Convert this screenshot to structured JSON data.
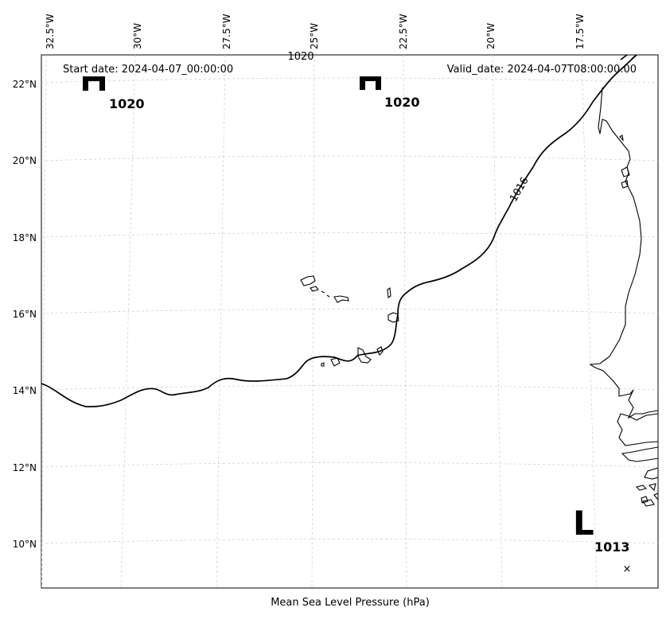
{
  "header": {
    "start_date": "Start date: 2024-04-07_00:00:00",
    "valid_date": "Valid_date: 2024-04-07T08:00:00.00"
  },
  "footer": {
    "caption": "Mean Sea Level Pressure (hPa)"
  },
  "longitude_ticks": [
    "32.5°W",
    "30°W",
    "27.5°W",
    "25°W",
    "22.5°W",
    "20°W",
    "17.5°W"
  ],
  "latitude_ticks": [
    "22°N",
    "20°N",
    "18°N",
    "16°N",
    "14°N",
    "12°N",
    "10°N"
  ],
  "isobar_labels": {
    "main": "1016",
    "top_partial": "1020"
  },
  "pressure_centers": [
    {
      "type": "H",
      "value": "1020"
    },
    {
      "type": "H",
      "value": "1020"
    },
    {
      "type": "L",
      "value": "1013",
      "marker": "×"
    }
  ]
}
